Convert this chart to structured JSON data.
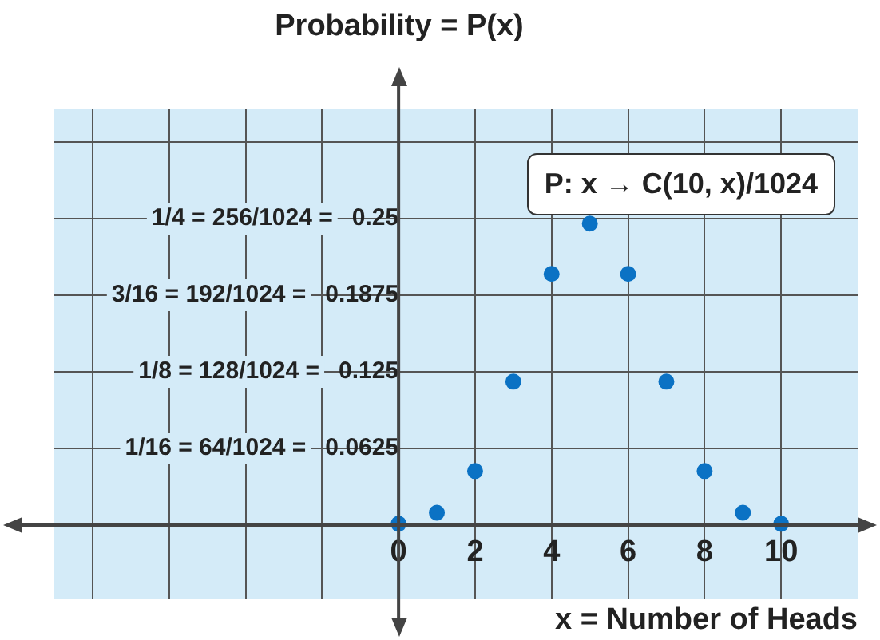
{
  "chart_data": {
    "type": "scatter",
    "ylabel": "Probability = P(x)",
    "xlabel": "x = Number of Heads",
    "annotations": [
      "P: x → C(10, x)/1024",
      "1/16 = 64/1024 =",
      "1/8 = 128/1024 =",
      "3/16 = 192/1024 =",
      "1/4 = 256/1024 ="
    ],
    "x": [
      0,
      1,
      2,
      3,
      4,
      5,
      6,
      7,
      8,
      9,
      10
    ],
    "series": [
      {
        "color": "#0b72c4",
        "values": [
          0.001,
          0.01,
          0.044,
          0.117,
          0.205,
          0.246,
          0.205,
          0.117,
          0.044,
          0.01,
          0.001
        ]
      }
    ],
    "xlim": [
      -9,
      12
    ],
    "xticks": [
      {
        "value": -8,
        "label": null
      },
      {
        "value": -6,
        "label": null
      },
      {
        "value": -4,
        "label": null
      },
      {
        "value": -2,
        "label": null
      },
      0,
      2,
      4,
      6,
      8,
      10
    ],
    "ylim": [
      -0.06,
      0.34
    ],
    "yticks": [
      0.0625,
      0.125,
      0.1875,
      0.25,
      {
        "value": 0.3125,
        "label": null
      }
    ],
    "grid": true,
    "marker": "circle",
    "legend": false
  }
}
